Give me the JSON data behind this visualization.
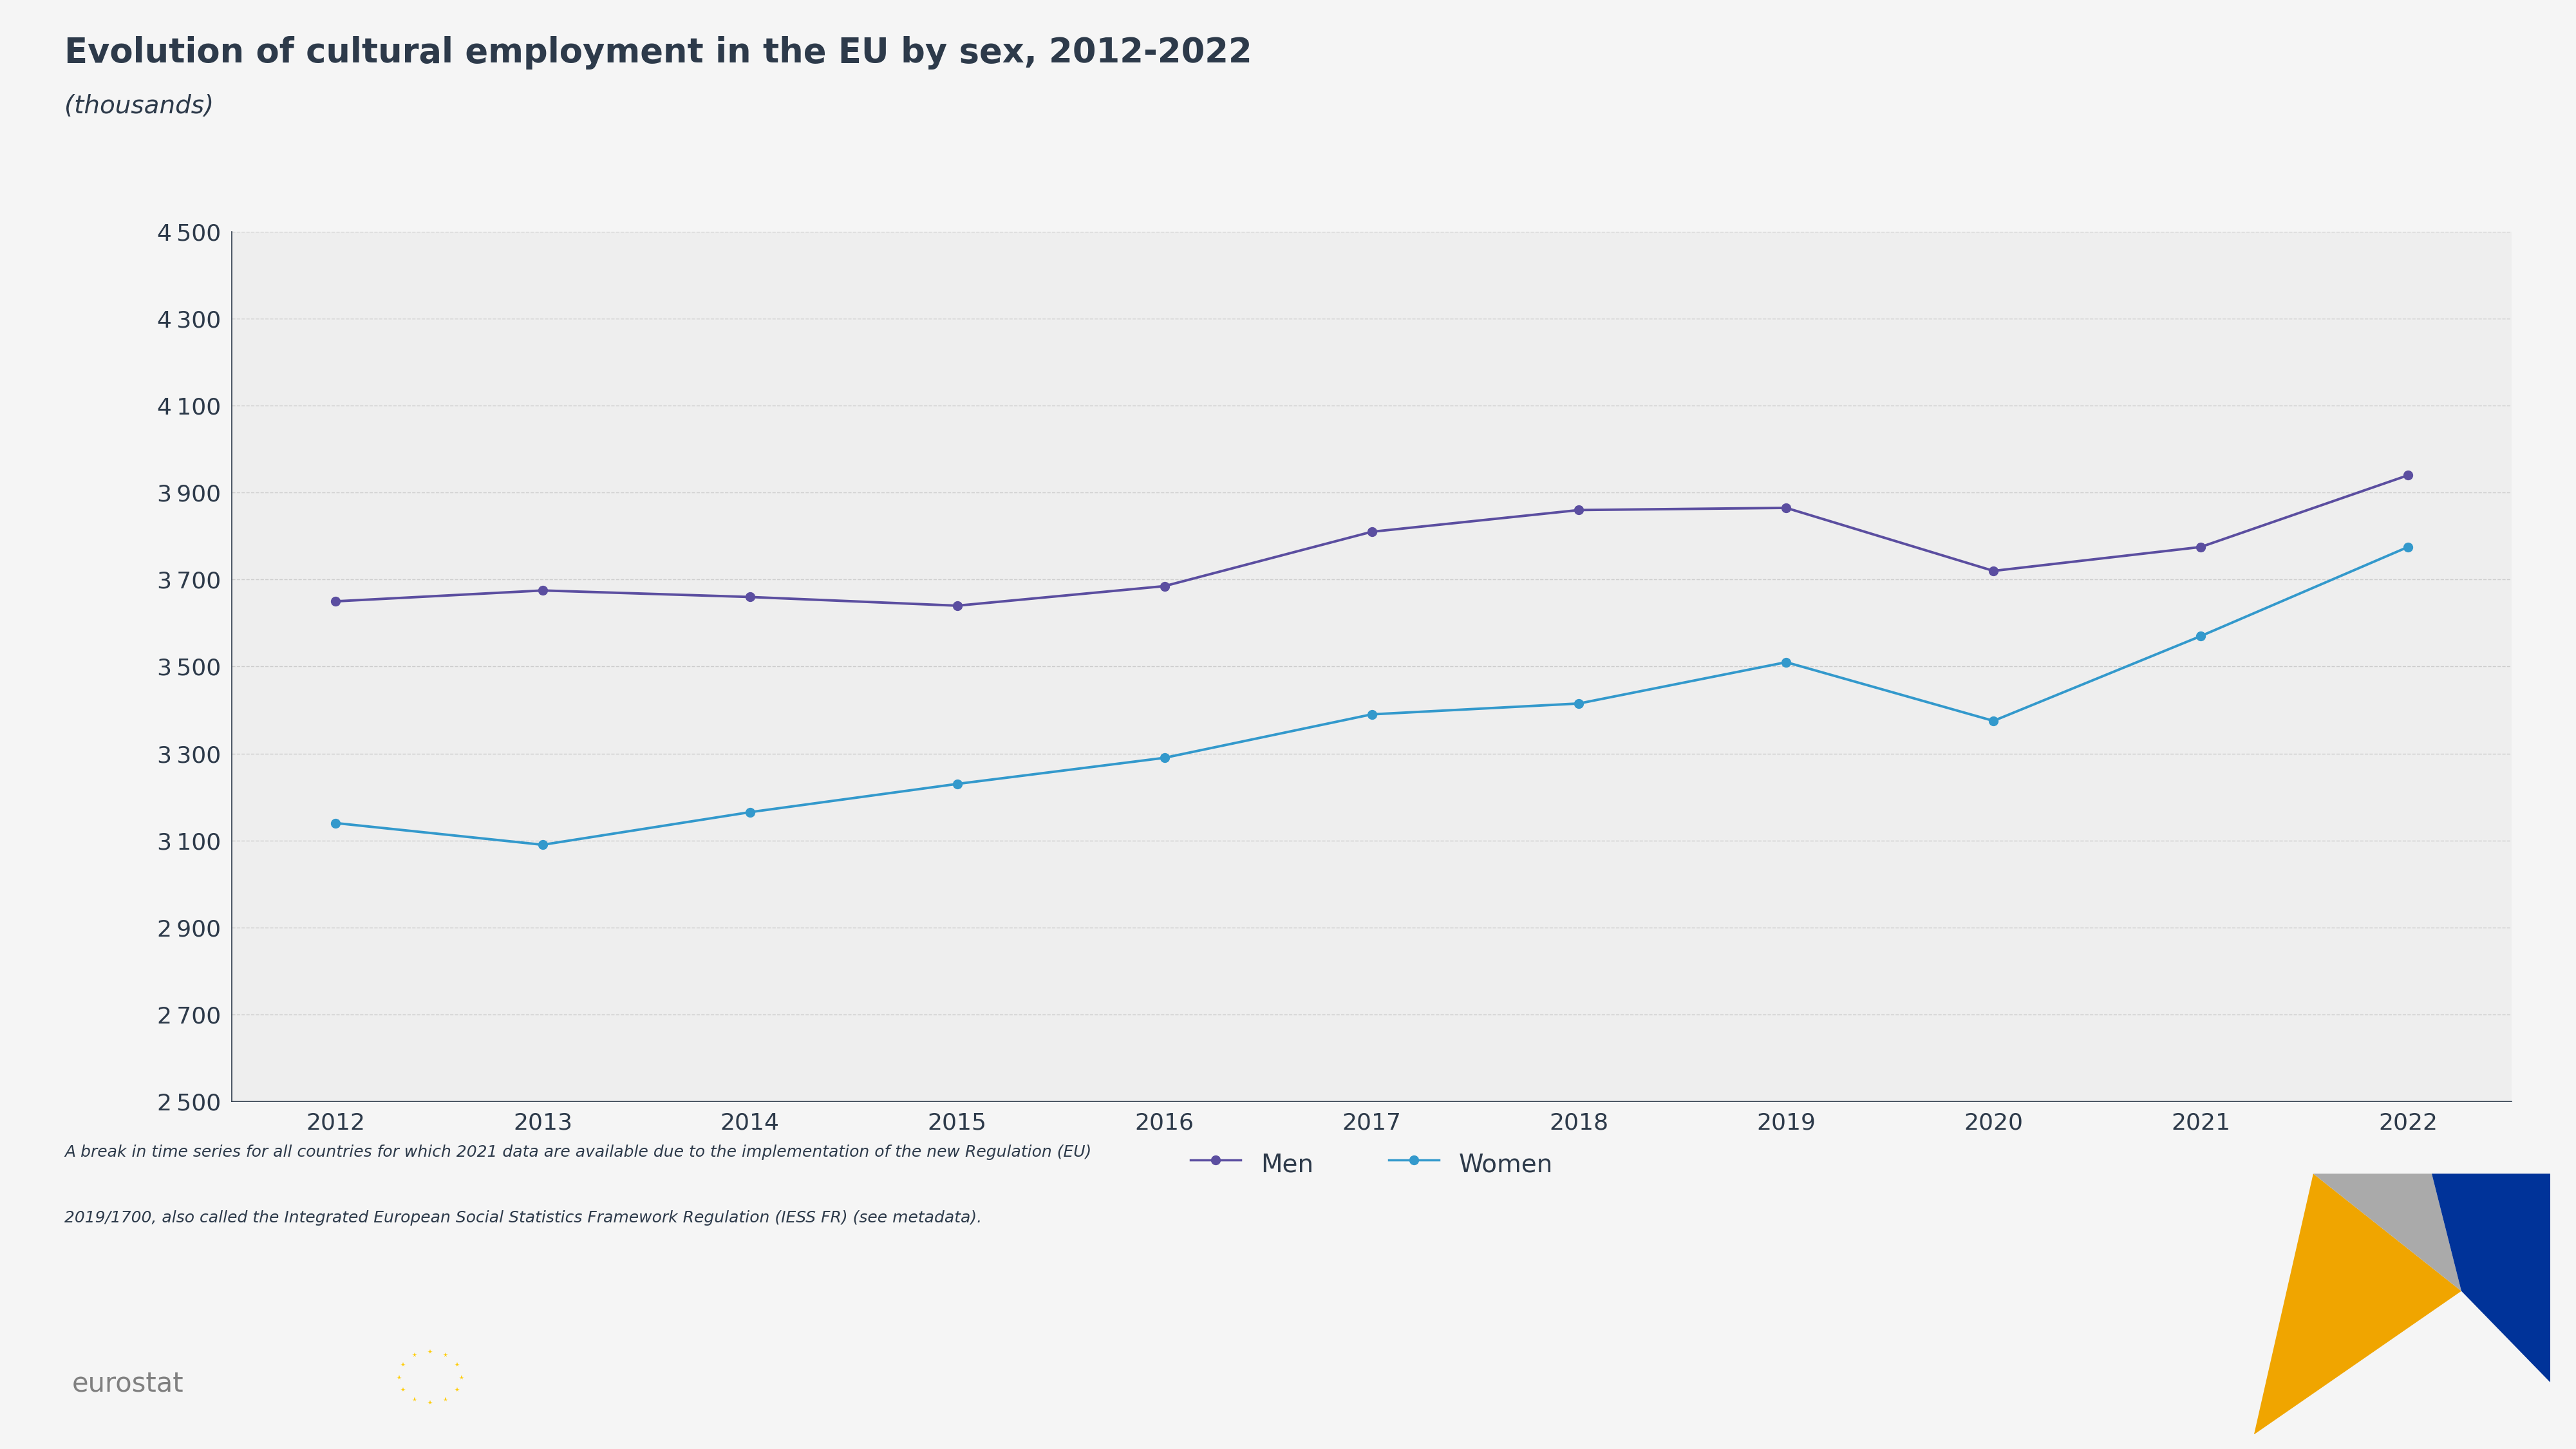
{
  "title": "Evolution of cultural employment in the EU by sex, 2012-2022",
  "subtitle": "(thousands)",
  "years": [
    2012,
    2013,
    2014,
    2015,
    2016,
    2017,
    2018,
    2019,
    2020,
    2021,
    2022
  ],
  "men": [
    3650,
    3675,
    3660,
    3640,
    3685,
    3810,
    3860,
    3865,
    3720,
    3775,
    3940
  ],
  "women": [
    3140,
    3090,
    3165,
    3230,
    3290,
    3390,
    3415,
    3510,
    3375,
    3570,
    3775
  ],
  "men_color": "#5b4ea0",
  "women_color": "#3399cc",
  "chart_bg": "#eeeeee",
  "outer_bg": "#f5f5f5",
  "bottom_bg": "#ffffff",
  "axis_color": "#2d3a4a",
  "grid_color": "#cccccc",
  "eurostat_color": "#808080",
  "ylim": [
    2500,
    4500
  ],
  "yticks": [
    2500,
    2700,
    2900,
    3100,
    3300,
    3500,
    3700,
    3900,
    4100,
    4300,
    4500
  ],
  "footnote_line1": "A break in time series for all countries for which 2021 data are available due to the implementation of the new Regulation (EU)",
  "footnote_line2": "2019/1700, also called the Integrated European Social Statistics Framework Regulation (IESS FR) (see metadata).",
  "legend_men": "Men",
  "legend_women": "Women",
  "eu_flag_color": "#003399",
  "eu_star_color": "#ffcc00"
}
